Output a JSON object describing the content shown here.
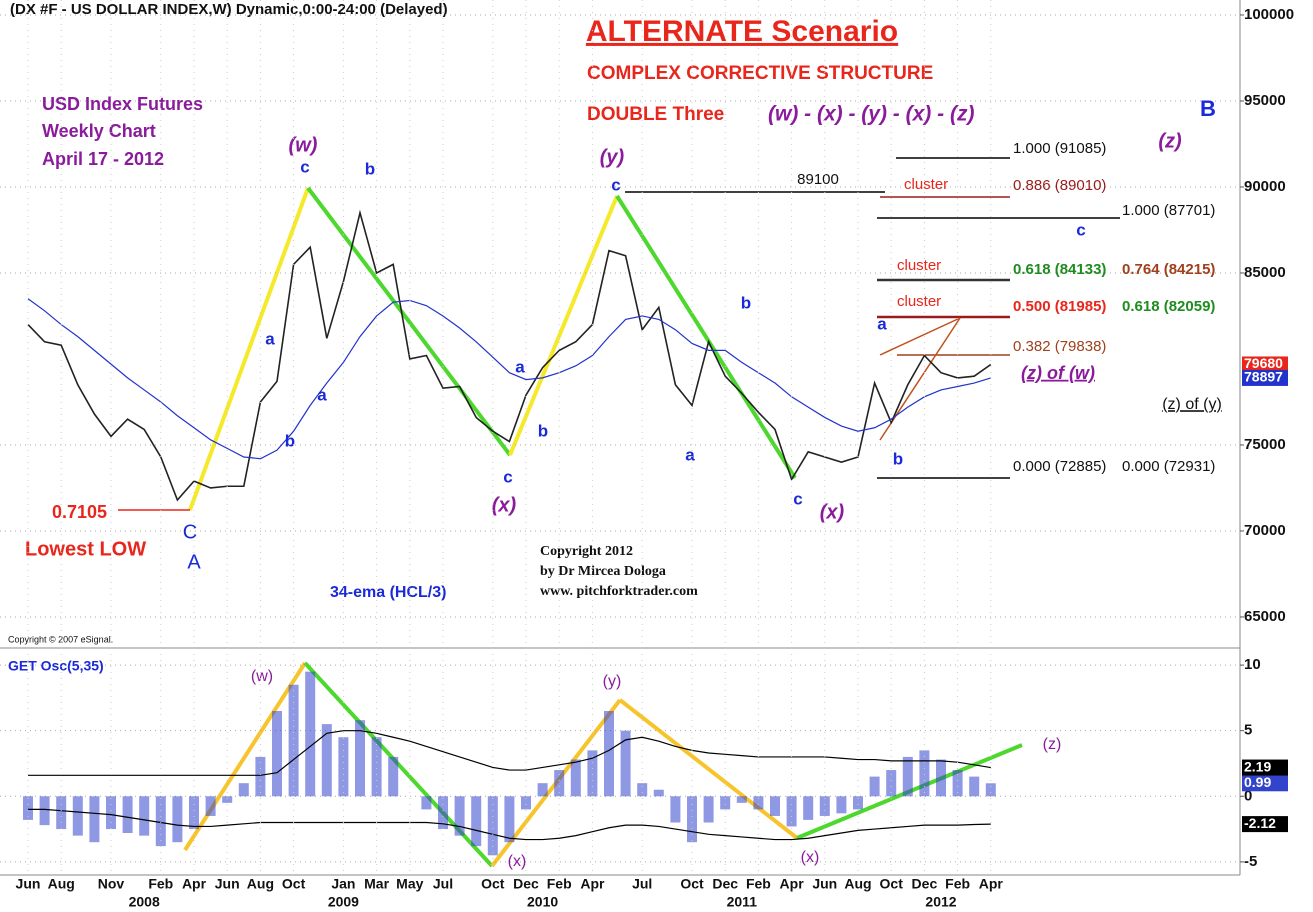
{
  "chart_data": [
    {
      "type": "line",
      "title": "(DX #F - US DOLLAR INDEX,W) Dynamic,0:00-24:00 (Delayed)",
      "ylim": [
        63370,
        100870
      ],
      "yticks": [
        65000,
        70000,
        75000,
        85000,
        90000,
        95000,
        100000
      ],
      "grid": true,
      "series": [
        {
          "name": "DX #F",
          "color": "#222222",
          "values": [
            82000,
            81000,
            80800,
            78500,
            76800,
            75500,
            76500,
            75900,
            74300,
            71800,
            72900,
            72500,
            72600,
            72600,
            77500,
            78700,
            85500,
            86500,
            81200,
            84500,
            88500,
            85000,
            85500,
            80000,
            80200,
            78300,
            78400,
            76600,
            75800,
            75200,
            77900,
            79500,
            80500,
            81000,
            82000,
            86300,
            86000,
            81700,
            83000,
            78500,
            77300,
            81000,
            79000,
            78000,
            76900,
            75900,
            73000,
            74600,
            74300,
            74000,
            74300,
            78600,
            76300,
            78500,
            80200,
            79200,
            78900,
            79000,
            79680
          ]
        },
        {
          "name": "34-ema",
          "color": "#2233cc",
          "values": [
            83500,
            82800,
            82000,
            81300,
            80500,
            79700,
            78900,
            78200,
            77500,
            76700,
            76000,
            75300,
            74800,
            74300,
            74200,
            74700,
            75800,
            77300,
            78600,
            79800,
            81300,
            82500,
            83300,
            83400,
            83100,
            82500,
            81800,
            81000,
            80100,
            79200,
            78800,
            78900,
            79200,
            79600,
            80200,
            81300,
            82300,
            82500,
            82300,
            81700,
            80900,
            80500,
            80500,
            79800,
            79200,
            78600,
            77800,
            77200,
            76600,
            76100,
            75800,
            76000,
            76500,
            77200,
            77800,
            78200,
            78400,
            78600,
            78897
          ]
        }
      ],
      "annotations": [
        {
          "text": "ALTERNATE Scenario",
          "color": "#e8261c"
        },
        {
          "text": "COMPLEX CORRECTIVE STRUCTURE",
          "color": "#e8261c"
        },
        {
          "text": "DOUBLE Three",
          "color": "#e8261c"
        },
        {
          "text": "(w) - (x) - (y) - (x) - (z)",
          "color": "#8a1c9c"
        },
        {
          "text": "USD Index Futures",
          "color": "#8a1c9c"
        },
        {
          "text": "Weekly Chart",
          "color": "#8a1c9c"
        },
        {
          "text": "April 17 - 2012",
          "color": "#8a1c9c"
        },
        {
          "text": "B",
          "color": "#1a2ad8"
        },
        {
          "text": "(z)",
          "color": "#8a1c9c"
        },
        {
          "text": "(w)",
          "color": "#8a1c9c"
        },
        {
          "text": "c",
          "color": "#1a2ad8"
        },
        {
          "text": "b",
          "color": "#1a2ad8"
        },
        {
          "text": "a",
          "color": "#1a2ad8"
        },
        {
          "text": "a",
          "color": "#1a2ad8"
        },
        {
          "text": "b",
          "color": "#1a2ad8"
        },
        {
          "text": "(y)",
          "color": "#8a1c9c"
        },
        {
          "text": "c",
          "color": "#1a2ad8"
        },
        {
          "text": "89100",
          "color": "#111111"
        },
        {
          "text": "a",
          "color": "#1a2ad8"
        },
        {
          "text": "b",
          "color": "#1a2ad8"
        },
        {
          "text": "c",
          "color": "#1a2ad8"
        },
        {
          "text": "(x)",
          "color": "#8a1c9c"
        },
        {
          "text": "b",
          "color": "#1a2ad8"
        },
        {
          "text": "a",
          "color": "#1a2ad8"
        },
        {
          "text": "c",
          "color": "#1a2ad8"
        },
        {
          "text": "(x)",
          "color": "#8a1c9c"
        },
        {
          "text": "a",
          "color": "#1a2ad8"
        },
        {
          "text": "b",
          "color": "#1a2ad8"
        },
        {
          "text": "(z) of (w)",
          "color": "#8a1c9c"
        },
        {
          "text": "(z) of (y)",
          "color": "#111111"
        },
        {
          "text": "1.000 (91085)",
          "color": "#111111"
        },
        {
          "text": "cluster",
          "color": "#e8261c"
        },
        {
          "text": "0.886 (89010)",
          "color": "#9b1b1b"
        },
        {
          "text": "1.000 (87701)",
          "color": "#111111"
        },
        {
          "text": "c",
          "color": "#1a2ad8"
        },
        {
          "text": "cluster",
          "color": "#e8261c"
        },
        {
          "text": "0.618 (84133)",
          "color": "#1f8c1f"
        },
        {
          "text": "0.764 (84215)",
          "color": "#a0401c"
        },
        {
          "text": "cluster",
          "color": "#e8261c"
        },
        {
          "text": "0.500 (81985)",
          "color": "#e8261c"
        },
        {
          "text": "0.618 (82059)",
          "color": "#1f8c1f"
        },
        {
          "text": "0.382 (79838)",
          "color": "#a0401c"
        },
        {
          "text": "0.000 (72885)",
          "color": "#111111"
        },
        {
          "text": "0.000 (72931)",
          "color": "#111111"
        },
        {
          "text": "0.7105",
          "color": "#e8261c"
        },
        {
          "text": "Lowest LOW",
          "color": "#e8261c"
        },
        {
          "text": "C",
          "color": "#1a2ad8"
        },
        {
          "text": "A",
          "color": "#1a2ad8"
        },
        {
          "text": "Copyright 2012",
          "color": "#111111"
        },
        {
          "text": "by Dr Mircea Dologa",
          "color": "#111111"
        },
        {
          "text": "www. pitchforktrader.com",
          "color": "#111111"
        },
        {
          "text": "34-ema (HCL/3)",
          "color": "#1a2ad8"
        },
        {
          "text": "Copyright © 2007 eSignal.",
          "color": "#111111"
        }
      ]
    },
    {
      "type": "bar",
      "categories": [
        "Jun",
        null,
        "Aug",
        null,
        null,
        "Nov",
        null,
        null,
        "Feb",
        null,
        "Apr",
        null,
        "Jun",
        null,
        "Aug",
        null,
        "Oct",
        null,
        null,
        "Jan",
        null,
        "Mar",
        null,
        "May",
        null,
        "Jul",
        null,
        null,
        "Oct",
        null,
        "Dec",
        null,
        "Feb",
        null,
        "Apr",
        null,
        null,
        "Jul",
        null,
        null,
        "Oct",
        null,
        "Dec",
        null,
        "Feb",
        null,
        "Apr",
        null,
        "Jun",
        null,
        "Aug",
        null,
        "Oct",
        null,
        "Dec",
        null,
        "Feb",
        null,
        "Apr"
      ],
      "year_categories": [
        null,
        null,
        null,
        null,
        null,
        null,
        null,
        "2008",
        null,
        null,
        null,
        null,
        null,
        null,
        null,
        null,
        null,
        null,
        null,
        "2009",
        null,
        null,
        null,
        null,
        null,
        null,
        null,
        null,
        null,
        null,
        null,
        "2010",
        null,
        null,
        null,
        null,
        null,
        null,
        null,
        null,
        null,
        null,
        null,
        "2011",
        null,
        null,
        null,
        null,
        null,
        null,
        null,
        null,
        null,
        null,
        null,
        "2012",
        null,
        null,
        null
      ],
      "ylim": [
        -6,
        11.15
      ],
      "yticks": [
        -5,
        0,
        5,
        10
      ],
      "grid": true,
      "series": [
        {
          "name": "GET Osc",
          "color": "#3344cc",
          "values": [
            -1.8,
            -2.2,
            -2.5,
            -3,
            -3.5,
            -2.5,
            -2.8,
            -3,
            -3.8,
            -3.5,
            -2.5,
            -1.5,
            -0.5,
            1,
            3,
            6.5,
            8.5,
            9.5,
            5.5,
            4.5,
            5.8,
            4.5,
            3,
            0,
            -1,
            -2.5,
            -3,
            -3.8,
            -4.5,
            -3.5,
            -1,
            1,
            2,
            2.8,
            3.5,
            6.5,
            5,
            1,
            0.5,
            -2,
            -3.5,
            -2,
            -1,
            -0.5,
            -1,
            -1.5,
            -2.3,
            -1.8,
            -1.5,
            -1.3,
            -1,
            1.5,
            2,
            3,
            3.5,
            2.8,
            2,
            1.5,
            0.99
          ]
        },
        {
          "name": "upper",
          "color": "#000000",
          "values": [
            1.6,
            1.6,
            1.6,
            1.6,
            1.6,
            1.6,
            1.6,
            1.6,
            1.6,
            1.6,
            1.6,
            1.6,
            1.6,
            1.6,
            1.6,
            1.8,
            2.8,
            3.8,
            4.8,
            5,
            5,
            4.8,
            4.5,
            4.2,
            3.8,
            3.4,
            3,
            2.6,
            2.2,
            2,
            2,
            2.2,
            2.4,
            2.6,
            2.9,
            3.5,
            4.3,
            4.5,
            4.2,
            3.8,
            3.5,
            3.3,
            3.2,
            3.1,
            3,
            3,
            3,
            3,
            3,
            2.9,
            2.8,
            2.8,
            2.7,
            2.7,
            2.7,
            2.7,
            2.6,
            2.4,
            2.19
          ]
        },
        {
          "name": "lower",
          "color": "#000000",
          "values": [
            -1,
            -1,
            -1.1,
            -1.2,
            -1.3,
            -1.4,
            -1.6,
            -1.8,
            -2,
            -2.2,
            -2.3,
            -2.3,
            -2.2,
            -2.1,
            -2,
            -2,
            -2,
            -2,
            -2,
            -2,
            -2,
            -2,
            -2,
            -2,
            -2,
            -2.1,
            -2.3,
            -2.6,
            -2.9,
            -3.2,
            -3.3,
            -3.3,
            -3.2,
            -3,
            -2.7,
            -2.4,
            -2.2,
            -2.2,
            -2.3,
            -2.5,
            -2.7,
            -2.9,
            -3,
            -3.1,
            -3.2,
            -3.3,
            -3.3,
            -3.2,
            -3,
            -2.8,
            -2.6,
            -2.5,
            -2.4,
            -2.3,
            -2.2,
            -2.2,
            -2.2,
            -2.15,
            -2.12
          ]
        }
      ],
      "annotations": [
        {
          "text": "GET Osc(5,35)",
          "color": "#1a2ad8"
        },
        {
          "text": "(w)",
          "color": "#8a1c9c"
        },
        {
          "text": "(y)",
          "color": "#8a1c9c"
        },
        {
          "text": "(x)",
          "color": "#8a1c9c"
        },
        {
          "text": "(x)",
          "color": "#8a1c9c"
        },
        {
          "text": "(z)",
          "color": "#8a1c9c"
        }
      ]
    }
  ]
}
